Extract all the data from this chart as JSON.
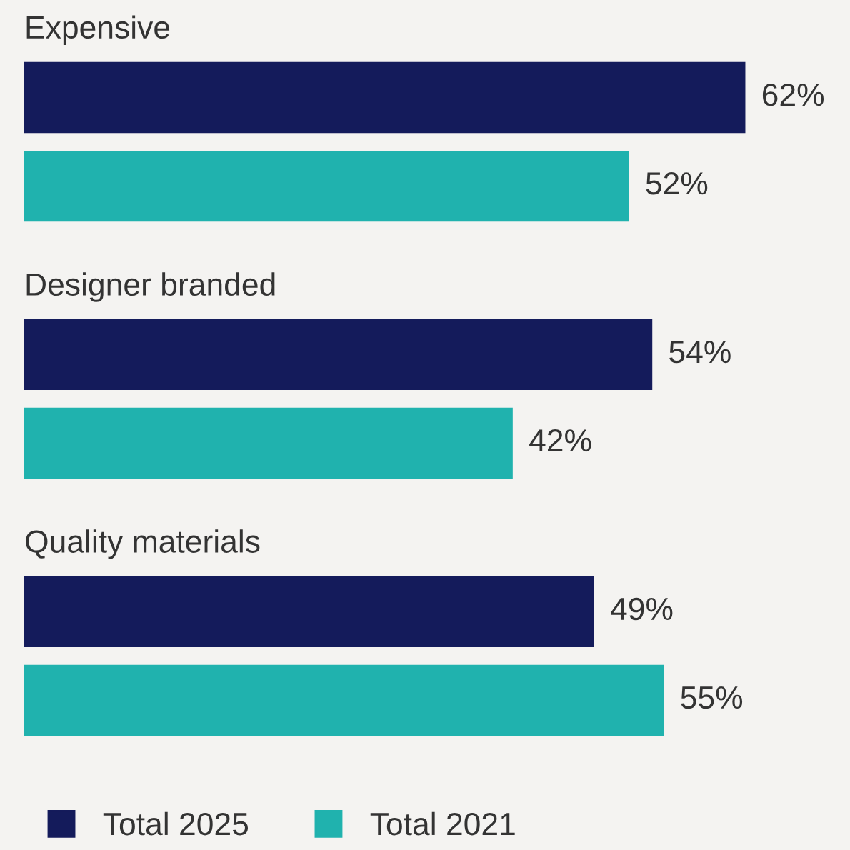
{
  "chart_data": {
    "type": "bar",
    "orientation": "horizontal",
    "categories": [
      "Expensive",
      "Designer branded",
      "Quality materials"
    ],
    "series": [
      {
        "name": "Total 2025",
        "color": "#141b5b",
        "values": [
          62,
          54,
          49
        ],
        "value_labels": [
          "62%",
          "54%",
          "49%"
        ]
      },
      {
        "name": "Total 2021",
        "color": "#20b2ae",
        "values": [
          52,
          42,
          55
        ],
        "value_labels": [
          "52%",
          "42%",
          "55%"
        ]
      }
    ],
    "xlim": [
      0,
      71
    ],
    "tick_labels": false,
    "legend": "bottom"
  }
}
